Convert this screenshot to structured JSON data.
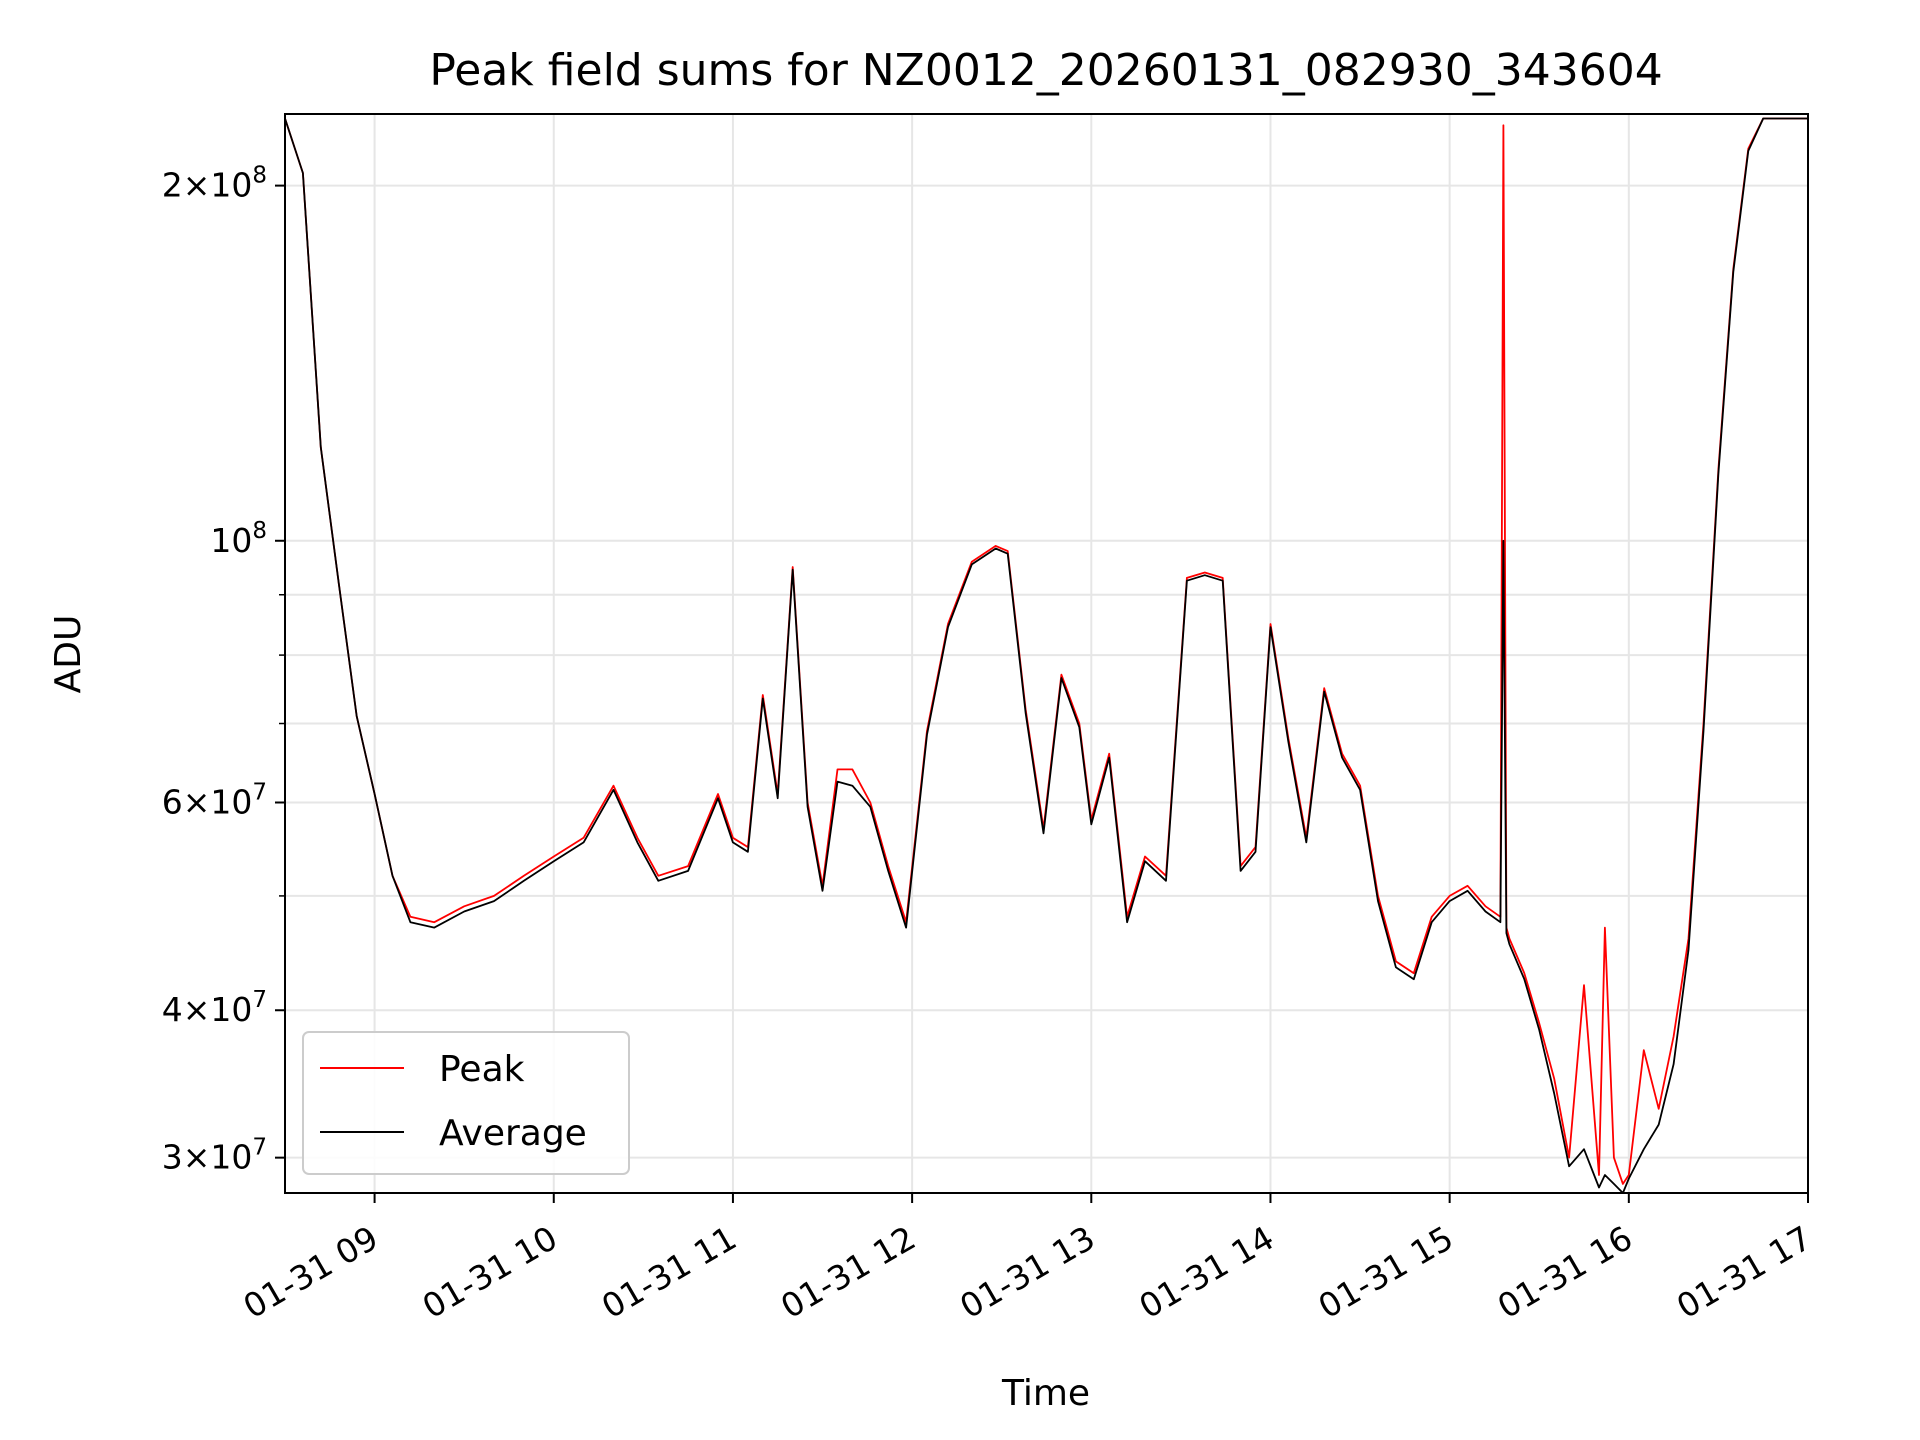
{
  "chart_data": {
    "type": "line",
    "title": "Peak field sums for NZ0012_20260131_082930_343604",
    "xlabel": "Time",
    "ylabel": "ADU",
    "y_scale": "log",
    "xlim": [
      "2026-01-31 08:30",
      "2026-01-31 17:00"
    ],
    "ylim": [
      28000000,
      230000000
    ],
    "grid": true,
    "legend": "lower-left",
    "x_ticks": [
      {
        "time": "2026-01-31 09:00",
        "label": "01-31 09"
      },
      {
        "time": "2026-01-31 10:00",
        "label": "01-31 10"
      },
      {
        "time": "2026-01-31 11:00",
        "label": "01-31 11"
      },
      {
        "time": "2026-01-31 12:00",
        "label": "01-31 12"
      },
      {
        "time": "2026-01-31 13:00",
        "label": "01-31 13"
      },
      {
        "time": "2026-01-31 14:00",
        "label": "01-31 14"
      },
      {
        "time": "2026-01-31 15:00",
        "label": "01-31 15"
      },
      {
        "time": "2026-01-31 16:00",
        "label": "01-31 16"
      },
      {
        "time": "2026-01-31 17:00",
        "label": "01-31 17"
      }
    ],
    "y_ticks": [
      {
        "value": 30000000,
        "mant": "3",
        "exp": "7"
      },
      {
        "value": 40000000,
        "mant": "4",
        "exp": "7"
      },
      {
        "value": 60000000,
        "mant": "6",
        "exp": "7"
      },
      {
        "value": 100000000,
        "mant": "",
        "exp": "8"
      },
      {
        "value": 200000000,
        "mant": "2",
        "exp": "8"
      }
    ],
    "y_minor_ticks": [
      50000000,
      70000000,
      80000000,
      90000000
    ],
    "series": [
      {
        "name": "Peak",
        "color": "#ff0000",
        "x": [
          "08:30",
          "08:36",
          "08:42",
          "08:48",
          "08:54",
          "09:00",
          "09:06",
          "09:12",
          "09:20",
          "09:30",
          "09:40",
          "09:50",
          "10:00",
          "10:10",
          "10:20",
          "10:28",
          "10:35",
          "10:45",
          "10:55",
          "11:00",
          "11:05",
          "11:10",
          "11:15",
          "11:20",
          "11:25",
          "11:30",
          "11:35",
          "11:40",
          "11:46",
          "11:52",
          "11:58",
          "12:05",
          "12:12",
          "12:20",
          "12:28",
          "12:32",
          "12:38",
          "12:44",
          "12:50",
          "12:56",
          "13:00",
          "13:06",
          "13:12",
          "13:18",
          "13:25",
          "13:32",
          "13:38",
          "13:44",
          "13:50",
          "13:55",
          "14:00",
          "14:06",
          "14:12",
          "14:18",
          "14:24",
          "14:30",
          "14:36",
          "14:42",
          "14:48",
          "14:54",
          "15:00",
          "15:06",
          "15:12",
          "15:17",
          "15:18",
          "15:19",
          "15:20",
          "15:25",
          "15:30",
          "15:35",
          "15:40",
          "15:45",
          "15:50",
          "15:52",
          "15:55",
          "15:58",
          "16:00",
          "16:05",
          "16:10",
          "16:15",
          "16:20",
          "16:25",
          "16:30",
          "16:35",
          "16:40",
          "16:45",
          "16:50",
          "17:00"
        ],
        "y": [
          228000000,
          205000000,
          120000000,
          92000000,
          71000000,
          61000000,
          52000000,
          48000000,
          47500000,
          49000000,
          50000000,
          52000000,
          54000000,
          56000000,
          62000000,
          56000000,
          52000000,
          53000000,
          61000000,
          56000000,
          55000000,
          74000000,
          61000000,
          95000000,
          60000000,
          51000000,
          64000000,
          64000000,
          60000000,
          53000000,
          47500000,
          69000000,
          85000000,
          96000000,
          99000000,
          98000000,
          72000000,
          57000000,
          77000000,
          70000000,
          58000000,
          66000000,
          48000000,
          54000000,
          52000000,
          93000000,
          94000000,
          93000000,
          53000000,
          55000000,
          85000000,
          68000000,
          56000000,
          75000000,
          66000000,
          62000000,
          50000000,
          44000000,
          43000000,
          48000000,
          50000000,
          51000000,
          49000000,
          48000000,
          225000000,
          47000000,
          46000000,
          43000000,
          39000000,
          35000000,
          30000000,
          42000000,
          29000000,
          47000000,
          30000000,
          28500000,
          29000000,
          37000000,
          33000000,
          38000000,
          46000000,
          70000000,
          115000000,
          170000000,
          215000000,
          228000000,
          228000000,
          228000000
        ]
      },
      {
        "name": "Average",
        "color": "#000000",
        "x": [
          "08:30",
          "08:36",
          "08:42",
          "08:48",
          "08:54",
          "09:00",
          "09:06",
          "09:12",
          "09:20",
          "09:30",
          "09:40",
          "09:50",
          "10:00",
          "10:10",
          "10:20",
          "10:28",
          "10:35",
          "10:45",
          "10:55",
          "11:00",
          "11:05",
          "11:10",
          "11:15",
          "11:20",
          "11:25",
          "11:30",
          "11:35",
          "11:40",
          "11:46",
          "11:52",
          "11:58",
          "12:05",
          "12:12",
          "12:20",
          "12:28",
          "12:32",
          "12:38",
          "12:44",
          "12:50",
          "12:56",
          "13:00",
          "13:06",
          "13:12",
          "13:18",
          "13:25",
          "13:32",
          "13:38",
          "13:44",
          "13:50",
          "13:55",
          "14:00",
          "14:06",
          "14:12",
          "14:18",
          "14:24",
          "14:30",
          "14:36",
          "14:42",
          "14:48",
          "14:54",
          "15:00",
          "15:06",
          "15:12",
          "15:17",
          "15:18",
          "15:19",
          "15:20",
          "15:25",
          "15:30",
          "15:35",
          "15:40",
          "15:45",
          "15:50",
          "15:52",
          "15:55",
          "15:58",
          "16:00",
          "16:05",
          "16:10",
          "16:15",
          "16:20",
          "16:25",
          "16:30",
          "16:35",
          "16:40",
          "16:45",
          "16:50",
          "17:00"
        ],
        "y": [
          228000000,
          205000000,
          120000000,
          92000000,
          71000000,
          61000000,
          52000000,
          47500000,
          47000000,
          48500000,
          49500000,
          51500000,
          53500000,
          55500000,
          61500000,
          55500000,
          51500000,
          52500000,
          60500000,
          55500000,
          54500000,
          73500000,
          60500000,
          94500000,
          59500000,
          50500000,
          62500000,
          62000000,
          59500000,
          52500000,
          47000000,
          68500000,
          84500000,
          95500000,
          98500000,
          97500000,
          71500000,
          56500000,
          76500000,
          69500000,
          57500000,
          65500000,
          47500000,
          53500000,
          51500000,
          92500000,
          93500000,
          92500000,
          52500000,
          54500000,
          84500000,
          67500000,
          55500000,
          74500000,
          65500000,
          61500000,
          49500000,
          43500000,
          42500000,
          47500000,
          49500000,
          50500000,
          48500000,
          47500000,
          100000000,
          46500000,
          45500000,
          42500000,
          38500000,
          34000000,
          29500000,
          30500000,
          28300000,
          29000000,
          28500000,
          28000000,
          28800000,
          30500000,
          32000000,
          36000000,
          45000000,
          69000000,
          114000000,
          169000000,
          214000000,
          228000000,
          228000000,
          228000000
        ]
      }
    ]
  }
}
